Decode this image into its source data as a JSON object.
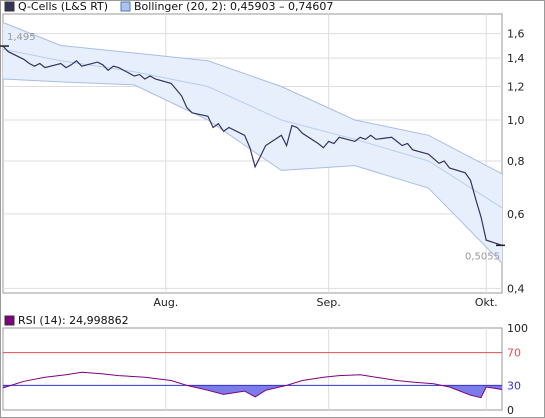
{
  "chart_data": [
    {
      "type": "line",
      "title": "",
      "legend": [
        {
          "swatch_color": "#34345a",
          "label": "Q-Cells (L&S RT)"
        },
        {
          "swatch_color": "#a9c4f0",
          "label": "Bollinger (20, 2): 0,45903 – 0,74607"
        }
      ],
      "yscale": "log",
      "ylim": [
        0.39,
        1.78
      ],
      "yticks": [
        {
          "value": 1.6,
          "label": "1,6"
        },
        {
          "value": 1.4,
          "label": "1,4"
        },
        {
          "value": 1.2,
          "label": "1,2"
        },
        {
          "value": 1.0,
          "label": "1,0"
        },
        {
          "value": 0.8,
          "label": "0,8"
        },
        {
          "value": 0.6,
          "label": "0,6"
        },
        {
          "value": 0.4,
          "label": "0,4"
        }
      ],
      "xlim": [
        "2010-07-01",
        "2010-10-04"
      ],
      "xticks": [
        {
          "date": "2010-08-01",
          "label": "Aug."
        },
        {
          "date": "2010-09-01",
          "label": "Sep."
        },
        {
          "date": "2010-10-01",
          "label": "Okt."
        }
      ],
      "annotations": [
        {
          "date": "2010-07-01",
          "value": 1.495,
          "label": "1,495"
        },
        {
          "date": "2010-10-04",
          "value": 0.5055,
          "label": "0,5055"
        }
      ],
      "colors": {
        "price": "#34345a",
        "band_fill": "#e7effc",
        "band_edge": "#a9bde6",
        "band_mid": "#b8cdf0",
        "grid": "#dddddd"
      },
      "series": [
        {
          "name": "Q-Cells (L&S RT)",
          "points": [
            [
              "2010-07-01",
              1.495
            ],
            [
              "2010-07-02",
              1.45
            ],
            [
              "2010-07-05",
              1.39
            ],
            [
              "2010-07-06",
              1.36
            ],
            [
              "2010-07-07",
              1.34
            ],
            [
              "2010-07-08",
              1.36
            ],
            [
              "2010-07-09",
              1.33
            ],
            [
              "2010-07-12",
              1.36
            ],
            [
              "2010-07-13",
              1.33
            ],
            [
              "2010-07-14",
              1.35
            ],
            [
              "2010-07-15",
              1.38
            ],
            [
              "2010-07-16",
              1.34
            ],
            [
              "2010-07-19",
              1.37
            ],
            [
              "2010-07-20",
              1.35
            ],
            [
              "2010-07-21",
              1.31
            ],
            [
              "2010-07-22",
              1.34
            ],
            [
              "2010-07-23",
              1.33
            ],
            [
              "2010-07-26",
              1.27
            ],
            [
              "2010-07-27",
              1.28
            ],
            [
              "2010-07-28",
              1.25
            ],
            [
              "2010-07-29",
              1.27
            ],
            [
              "2010-07-30",
              1.25
            ],
            [
              "2010-08-02",
              1.22
            ],
            [
              "2010-08-03",
              1.18
            ],
            [
              "2010-08-04",
              1.14
            ],
            [
              "2010-08-05",
              1.07
            ],
            [
              "2010-08-06",
              1.04
            ],
            [
              "2010-08-09",
              1.02
            ],
            [
              "2010-08-10",
              0.96
            ],
            [
              "2010-08-11",
              0.98
            ],
            [
              "2010-08-12",
              0.94
            ],
            [
              "2010-08-13",
              0.96
            ],
            [
              "2010-08-16",
              0.92
            ],
            [
              "2010-08-17",
              0.86
            ],
            [
              "2010-08-18",
              0.775
            ],
            [
              "2010-08-19",
              0.82
            ],
            [
              "2010-08-20",
              0.87
            ],
            [
              "2010-08-23",
              0.92
            ],
            [
              "2010-08-24",
              0.87
            ],
            [
              "2010-08-25",
              0.97
            ],
            [
              "2010-08-26",
              0.96
            ],
            [
              "2010-08-27",
              0.93
            ],
            [
              "2010-08-30",
              0.88
            ],
            [
              "2010-08-31",
              0.86
            ],
            [
              "2010-09-01",
              0.89
            ],
            [
              "2010-09-02",
              0.88
            ],
            [
              "2010-09-03",
              0.91
            ],
            [
              "2010-09-06",
              0.89
            ],
            [
              "2010-09-07",
              0.91
            ],
            [
              "2010-09-08",
              0.9
            ],
            [
              "2010-09-09",
              0.92
            ],
            [
              "2010-09-10",
              0.9
            ],
            [
              "2010-09-13",
              0.91
            ],
            [
              "2010-09-14",
              0.89
            ],
            [
              "2010-09-15",
              0.87
            ],
            [
              "2010-09-16",
              0.88
            ],
            [
              "2010-09-17",
              0.85
            ],
            [
              "2010-09-20",
              0.83
            ],
            [
              "2010-09-21",
              0.81
            ],
            [
              "2010-09-22",
              0.79
            ],
            [
              "2010-09-23",
              0.8
            ],
            [
              "2010-09-24",
              0.77
            ],
            [
              "2010-09-27",
              0.75
            ],
            [
              "2010-09-28",
              0.72
            ],
            [
              "2010-09-29",
              0.65
            ],
            [
              "2010-09-30",
              0.59
            ],
            [
              "2010-10-01",
              0.52
            ],
            [
              "2010-10-04",
              0.5055
            ]
          ]
        },
        {
          "name": "Bollinger (20, 2): 0,45903 – 0,74607",
          "x": [
            "2010-07-01",
            "2010-07-12",
            "2010-07-26",
            "2010-08-09",
            "2010-08-23",
            "2010-09-06",
            "2010-09-20",
            "2010-10-04"
          ],
          "upper": [
            1.7,
            1.5,
            1.44,
            1.38,
            1.2,
            1.0,
            0.92,
            0.74607
          ],
          "middle": [
            1.47,
            1.38,
            1.3,
            1.2,
            1.0,
            0.9,
            0.8,
            0.62
          ],
          "lower": [
            1.25,
            1.23,
            1.21,
            1.0,
            0.76,
            0.78,
            0.69,
            0.45903
          ]
        }
      ]
    },
    {
      "type": "line",
      "title": "",
      "legend": [
        {
          "swatch_color": "#800080",
          "label": "RSI (14): 24,998862"
        }
      ],
      "ylim": [
        0,
        100
      ],
      "yticks": [
        {
          "value": 100,
          "label": "100"
        },
        {
          "value": 70,
          "label": "70"
        },
        {
          "value": 30,
          "label": "30"
        },
        {
          "value": 0,
          "label": "0"
        }
      ],
      "thresholds": [
        {
          "value": 70,
          "color": "#e05050"
        },
        {
          "value": 30,
          "color": "#3333cc"
        }
      ],
      "colors": {
        "line": "#800080",
        "oversold_fill": "#7b7bea",
        "tick_70": "#e05050",
        "tick_30": "#3333cc"
      },
      "series": [
        {
          "name": "RSI (14)",
          "points": [
            [
              "2010-07-01",
              27
            ],
            [
              "2010-07-05",
              35
            ],
            [
              "2010-07-09",
              40
            ],
            [
              "2010-07-13",
              43
            ],
            [
              "2010-07-16",
              46
            ],
            [
              "2010-07-20",
              44
            ],
            [
              "2010-07-23",
              42
            ],
            [
              "2010-07-28",
              40
            ],
            [
              "2010-08-02",
              36
            ],
            [
              "2010-08-05",
              30
            ],
            [
              "2010-08-09",
              24
            ],
            [
              "2010-08-12",
              19
            ],
            [
              "2010-08-16",
              23
            ],
            [
              "2010-08-18",
              16
            ],
            [
              "2010-08-20",
              24
            ],
            [
              "2010-08-24",
              30
            ],
            [
              "2010-08-27",
              36
            ],
            [
              "2010-08-31",
              40
            ],
            [
              "2010-09-03",
              42
            ],
            [
              "2010-09-07",
              43
            ],
            [
              "2010-09-10",
              40
            ],
            [
              "2010-09-14",
              36
            ],
            [
              "2010-09-17",
              34
            ],
            [
              "2010-09-21",
              32
            ],
            [
              "2010-09-24",
              28
            ],
            [
              "2010-09-28",
              18
            ],
            [
              "2010-09-30",
              15
            ],
            [
              "2010-10-01",
              28
            ],
            [
              "2010-10-04",
              24.998862
            ]
          ]
        }
      ]
    }
  ]
}
